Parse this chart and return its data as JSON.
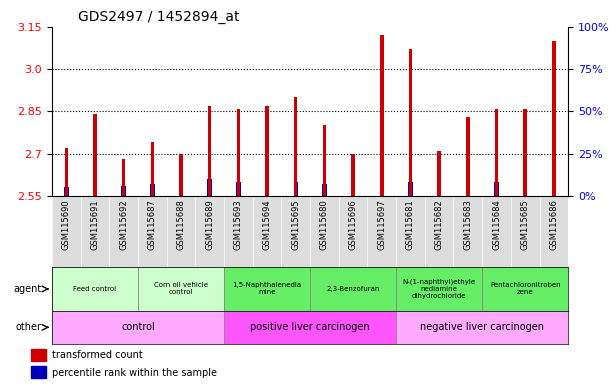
{
  "title": "GDS2497 / 1452894_at",
  "samples": [
    "GSM115690",
    "GSM115691",
    "GSM115692",
    "GSM115687",
    "GSM115688",
    "GSM115689",
    "GSM115693",
    "GSM115694",
    "GSM115695",
    "GSM115680",
    "GSM115696",
    "GSM115697",
    "GSM115681",
    "GSM115682",
    "GSM115683",
    "GSM115684",
    "GSM115685",
    "GSM115686"
  ],
  "transformed_count": [
    2.72,
    2.84,
    2.68,
    2.74,
    2.7,
    2.87,
    2.86,
    2.87,
    2.9,
    2.8,
    2.7,
    3.12,
    3.07,
    2.71,
    2.83,
    2.86,
    2.86,
    3.1
  ],
  "percentile_rank": [
    5,
    8,
    6,
    7,
    6,
    10,
    8,
    8,
    8,
    7,
    6,
    8,
    8,
    6,
    7,
    8,
    8,
    8
  ],
  "ylim_left": [
    2.55,
    3.15
  ],
  "ylim_right": [
    0,
    100
  ],
  "yticks_left": [
    2.55,
    2.7,
    2.85,
    3.0,
    3.15
  ],
  "yticks_right": [
    0,
    25,
    50,
    75,
    100
  ],
  "ytick_labels_right": [
    "0%",
    "25%",
    "50%",
    "75%",
    "100%"
  ],
  "bar_color_red": "#cc0000",
  "bar_color_blue": "#0000bb",
  "agent_groups": [
    {
      "label": "Feed control",
      "start": 0,
      "end": 3,
      "color": "#ccffcc"
    },
    {
      "label": "Corn oil vehicle\ncontrol",
      "start": 3,
      "end": 6,
      "color": "#ccffcc"
    },
    {
      "label": "1,5-Naphthalenedia\nmine",
      "start": 6,
      "end": 9,
      "color": "#66ee66"
    },
    {
      "label": "2,3-Benzofuran",
      "start": 9,
      "end": 12,
      "color": "#66ee66"
    },
    {
      "label": "N-(1-naphthyl)ethyle\nnediamine\ndihydrochloride",
      "start": 12,
      "end": 15,
      "color": "#66ee66"
    },
    {
      "label": "Pentachloronitroben\nzene",
      "start": 15,
      "end": 18,
      "color": "#66ee66"
    }
  ],
  "other_groups": [
    {
      "label": "control",
      "start": 0,
      "end": 6,
      "color": "#ffaaff"
    },
    {
      "label": "positive liver carcinogen",
      "start": 6,
      "end": 12,
      "color": "#ff55ff"
    },
    {
      "label": "negative liver carcinogen",
      "start": 12,
      "end": 18,
      "color": "#ffaaff"
    }
  ],
  "legend_items": [
    {
      "label": "transformed count",
      "color": "#cc0000"
    },
    {
      "label": "percentile rank within the sample",
      "color": "#0000bb"
    }
  ],
  "base_value": 2.55
}
